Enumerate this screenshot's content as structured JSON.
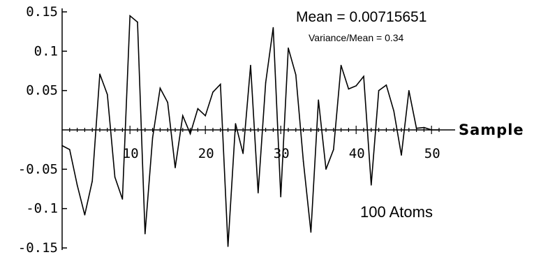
{
  "chart_data": {
    "type": "line",
    "xlabel": "Sample",
    "ylabel": "",
    "xlim": [
      1,
      52
    ],
    "ylim": [
      -0.15,
      0.15
    ],
    "x_ticks": [
      10,
      20,
      30,
      40,
      50
    ],
    "x_tick_labels": [
      "10",
      "20",
      "30",
      "40",
      "50"
    ],
    "y_ticks": [
      0.15,
      0.1,
      0.05,
      -0.05,
      -0.1,
      -0.15
    ],
    "y_tick_labels": [
      "0.15",
      "0.1",
      "0.05",
      "-0.05",
      "-0.1",
      "-0.15"
    ],
    "grid": false,
    "annotations": {
      "mean": "Mean = 0.00715651",
      "variance": "Variance/Mean = 0.34",
      "atoms": "100 Atoms"
    },
    "series": [
      {
        "x": [
          1,
          2,
          3,
          4,
          5,
          6,
          7,
          8,
          9,
          10,
          11,
          12,
          13,
          14,
          15,
          16,
          17,
          18,
          19,
          20,
          21,
          22,
          23,
          24,
          25,
          26,
          27,
          28,
          29,
          30,
          31,
          32,
          33,
          34,
          35,
          36,
          37,
          38,
          39,
          40,
          41,
          42,
          43,
          44,
          45,
          46,
          47,
          48,
          49,
          50,
          51
        ],
        "values": [
          -0.02,
          -0.025,
          -0.07,
          -0.108,
          -0.065,
          0.071,
          0.045,
          -0.06,
          -0.088,
          0.145,
          0.137,
          -0.132,
          -0.01,
          0.053,
          0.035,
          -0.048,
          0.018,
          -0.005,
          0.027,
          0.018,
          0.048,
          0.058,
          -0.148,
          0.008,
          -0.03,
          0.082,
          -0.08,
          0.06,
          0.13,
          -0.085,
          0.104,
          0.07,
          -0.04,
          -0.13,
          0.038,
          -0.05,
          -0.025,
          0.082,
          0.052,
          0.056,
          0.068,
          -0.07,
          0.05,
          0.057,
          0.024,
          -0.032,
          0.05,
          0.002,
          0.003,
          0.0,
          0.0
        ],
        "color": "#000000"
      }
    ]
  }
}
